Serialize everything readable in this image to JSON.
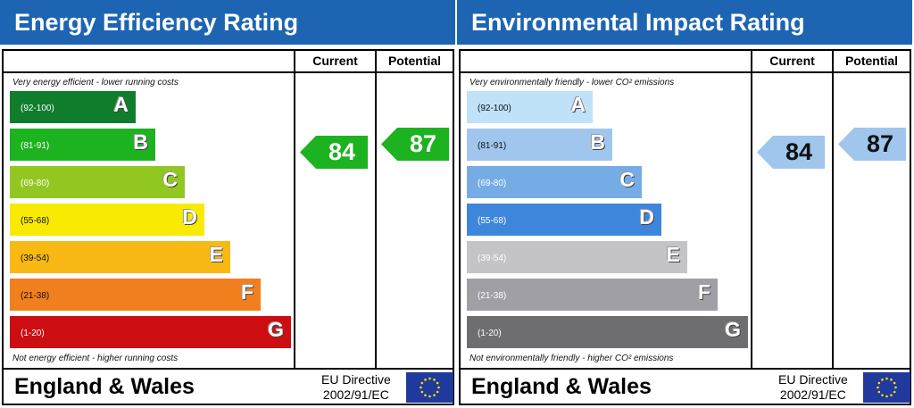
{
  "chart_data": [
    {
      "type": "bar",
      "title": "Energy Efficiency Rating",
      "columns": [
        "Current",
        "Potential"
      ],
      "top_note": "Very energy efficient - lower running costs",
      "bottom_note": "Not energy efficient - higher running costs",
      "bands": [
        {
          "letter": "A",
          "range": "(92-100)",
          "color": "#0f7d2c"
        },
        {
          "letter": "B",
          "range": "(81-91)",
          "color": "#1db21f"
        },
        {
          "letter": "C",
          "range": "(69-80)",
          "color": "#92c721"
        },
        {
          "letter": "D",
          "range": "(55-68)",
          "color": "#f8ea00"
        },
        {
          "letter": "E",
          "range": "(39-54)",
          "color": "#f9b914"
        },
        {
          "letter": "F",
          "range": "(21-38)",
          "color": "#f27f1d"
        },
        {
          "letter": "G",
          "range": "(1-20)",
          "color": "#cc0e13"
        }
      ],
      "current": 84,
      "potential": 87,
      "current_color": "#1db21f",
      "potential_color": "#1db21f",
      "value_text_color": "#ffffff",
      "footer": "England & Wales",
      "directive": [
        "EU Directive",
        "2002/91/EC"
      ]
    },
    {
      "type": "bar",
      "title": "Environmental Impact Rating",
      "columns": [
        "Current",
        "Potential"
      ],
      "top_note": "Very environmentally friendly - lower CO² emissions",
      "bottom_note": "Not environmentally friendly - higher CO² emissions",
      "bands": [
        {
          "letter": "A",
          "range": "(92-100)",
          "color": "#bfe2f8"
        },
        {
          "letter": "B",
          "range": "(81-91)",
          "color": "#a0c6ee"
        },
        {
          "letter": "C",
          "range": "(69-80)",
          "color": "#76ace6"
        },
        {
          "letter": "D",
          "range": "(55-68)",
          "color": "#3e86dc"
        },
        {
          "letter": "E",
          "range": "(39-54)",
          "color": "#c4c3c7"
        },
        {
          "letter": "F",
          "range": "(21-38)",
          "color": "#a09fa5"
        },
        {
          "letter": "G",
          "range": "(1-20)",
          "color": "#6e6e70"
        }
      ],
      "current": 84,
      "potential": 87,
      "current_color": "#a0c6ee",
      "potential_color": "#a0c6ee",
      "value_text_color": "#111111",
      "footer": "England & Wales",
      "directive": [
        "EU Directive",
        "2002/91/EC"
      ]
    }
  ]
}
